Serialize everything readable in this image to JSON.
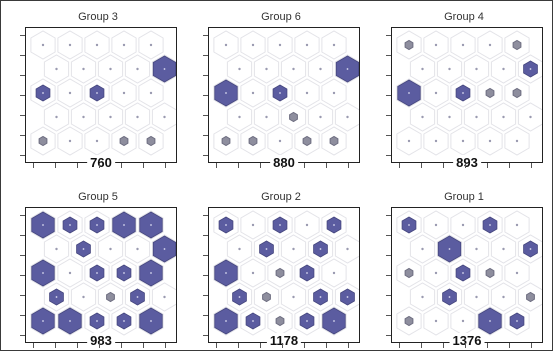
{
  "chart_data": [
    {
      "type": "hexbin",
      "title": "Group 3",
      "total": "760",
      "accent_color": "#5b5ca0",
      "rows": [
        [
          0,
          0,
          0,
          0,
          0
        ],
        [
          0,
          0,
          0,
          0,
          3
        ],
        [
          2,
          0,
          2,
          0,
          0
        ],
        [
          0,
          0,
          0,
          0,
          0
        ],
        [
          1,
          0,
          0,
          1,
          1
        ]
      ]
    },
    {
      "type": "hexbin",
      "title": "Group 6",
      "total": "880",
      "accent_color": "#5b5ca0",
      "rows": [
        [
          0,
          0,
          0,
          0,
          0
        ],
        [
          0,
          0,
          0,
          0,
          3
        ],
        [
          3,
          0,
          2,
          0,
          0
        ],
        [
          0,
          0,
          1,
          0,
          0
        ],
        [
          1,
          1,
          0,
          1,
          1
        ]
      ]
    },
    {
      "type": "hexbin",
      "title": "Group 4",
      "total": "893",
      "accent_color": "#5b5ca0",
      "rows": [
        [
          1,
          0,
          0,
          0,
          1
        ],
        [
          0,
          0,
          0,
          0,
          2
        ],
        [
          3,
          0,
          2,
          1,
          1
        ],
        [
          0,
          0,
          0,
          0,
          0
        ],
        [
          0,
          0,
          0,
          0,
          0
        ]
      ]
    },
    {
      "type": "hexbin",
      "title": "Group 5",
      "total": "983",
      "accent_color": "#5b5ca0",
      "rows": [
        [
          3,
          2,
          2,
          3,
          3
        ],
        [
          0,
          2,
          0,
          0,
          3
        ],
        [
          3,
          0,
          2,
          2,
          3
        ],
        [
          2,
          0,
          1,
          2,
          0
        ],
        [
          3,
          3,
          2,
          2,
          3
        ]
      ]
    },
    {
      "type": "hexbin",
      "title": "Group 2",
      "total": "1178",
      "accent_color": "#5b5ca0",
      "rows": [
        [
          2,
          0,
          2,
          0,
          2
        ],
        [
          0,
          2,
          0,
          2,
          0
        ],
        [
          3,
          0,
          1,
          2,
          0
        ],
        [
          2,
          1,
          0,
          2,
          2
        ],
        [
          3,
          2,
          1,
          2,
          3
        ]
      ]
    },
    {
      "type": "hexbin",
      "title": "Group 1",
      "total": "1376",
      "accent_color": "#5b5ca0",
      "rows": [
        [
          2,
          0,
          0,
          2,
          0
        ],
        [
          0,
          3,
          0,
          0,
          2
        ],
        [
          1,
          0,
          2,
          1,
          0
        ],
        [
          0,
          2,
          0,
          0,
          1
        ],
        [
          1,
          0,
          0,
          3,
          2
        ]
      ]
    }
  ]
}
